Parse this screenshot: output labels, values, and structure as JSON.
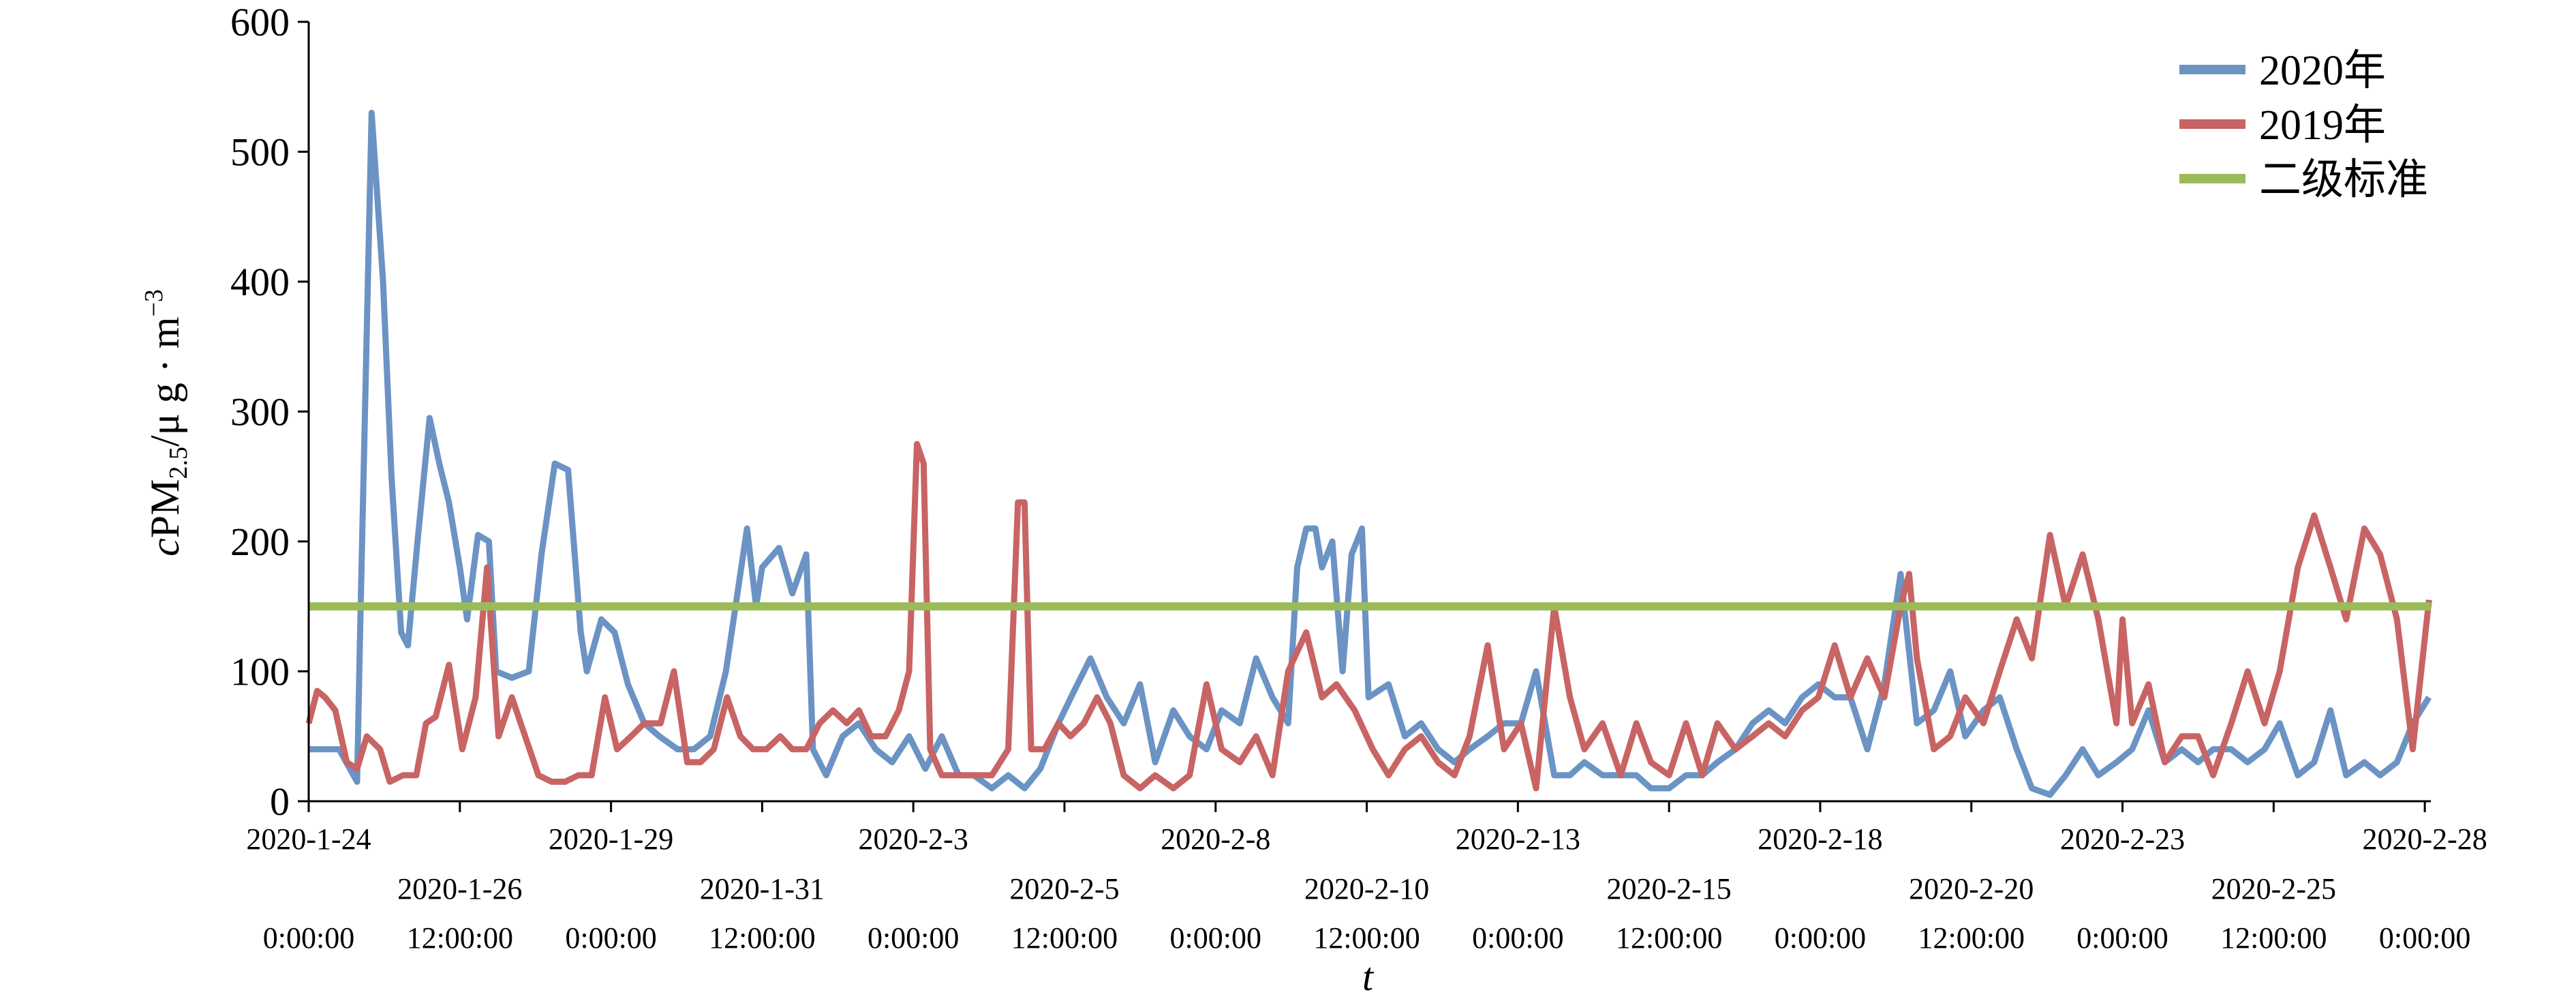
{
  "chart_data": {
    "type": "line",
    "ylabel": [
      "c",
      "PM",
      "2.5",
      "/μ g · m",
      "−3"
    ],
    "xlabel": "t",
    "xlim": [
      0,
      35.1
    ],
    "ylim": [
      0,
      600
    ],
    "yticks": [
      0,
      100,
      200,
      300,
      400,
      500,
      600
    ],
    "xticks": [
      {
        "value": 0,
        "label": "2020-1-24"
      },
      {
        "value": 2.5,
        "label": "2020-1-26"
      },
      {
        "value": 5,
        "label": "2020-1-29"
      },
      {
        "value": 7.5,
        "label": "2020-1-31"
      },
      {
        "value": 10,
        "label": "2020-2-3"
      },
      {
        "value": 12.5,
        "label": "2020-2-5"
      },
      {
        "value": 15,
        "label": "2020-2-8"
      },
      {
        "value": 17.5,
        "label": "2020-2-10"
      },
      {
        "value": 20,
        "label": "2020-2-13"
      },
      {
        "value": 22.5,
        "label": "2020-2-15"
      },
      {
        "value": 25,
        "label": "2020-2-18"
      },
      {
        "value": 27.5,
        "label": "2020-2-20"
      },
      {
        "value": 30,
        "label": "2020-2-23"
      },
      {
        "value": 32.5,
        "label": "2020-2-25"
      },
      {
        "value": 35,
        "label": "2020-2-28"
      }
    ],
    "xtick_times": [
      "0:00:00",
      "12:00:00",
      "0:00:00",
      "12:00:00",
      "0:00:00",
      "12:00:00",
      "0:00:00",
      "12:00:00",
      "0:00:00",
      "12:00:00",
      "0:00:00",
      "12:00:00",
      "0:00:00",
      "12:00:00",
      "0:00:00"
    ],
    "legend": "upper right",
    "series": [
      {
        "name": "2020年",
        "color": "#6b93c4",
        "x": [
          0,
          0.5,
          0.8,
          0.85,
          1.04,
          1.23,
          1.37,
          1.53,
          1.64,
          1.8,
          2.0,
          2.16,
          2.32,
          2.5,
          2.62,
          2.8,
          2.98,
          3.1,
          3.36,
          3.64,
          3.85,
          4.07,
          4.29,
          4.5,
          4.6,
          4.84,
          5.06,
          5.28,
          5.55,
          5.8,
          6.1,
          6.37,
          6.64,
          6.9,
          7.25,
          7.4,
          7.5,
          7.78,
          8.0,
          8.23,
          8.34,
          8.56,
          8.83,
          9.1,
          9.38,
          9.65,
          9.93,
          10.2,
          10.47,
          10.75,
          11.0,
          11.3,
          11.57,
          11.84,
          12.1,
          12.4,
          12.66,
          12.93,
          13.2,
          13.48,
          13.75,
          14.0,
          14.3,
          14.57,
          14.85,
          15.1,
          15.4,
          15.67,
          15.94,
          16.2,
          16.35,
          16.5,
          16.65,
          16.76,
          16.93,
          17.1,
          17.25,
          17.42,
          17.53,
          17.86,
          18.13,
          18.4,
          18.68,
          18.95,
          19.2,
          19.5,
          19.77,
          20.05,
          20.3,
          20.6,
          20.86,
          21.1,
          21.4,
          21.7,
          21.96,
          22.2,
          22.5,
          22.78,
          23.05,
          23.3,
          23.6,
          23.88,
          24.15,
          24.42,
          24.7,
          24.97,
          25.24,
          25.5,
          25.78,
          26.06,
          26.33,
          26.6,
          26.88,
          27.15,
          27.4,
          27.7,
          27.97,
          28.25,
          28.5,
          28.8,
          29.06,
          29.34,
          29.6,
          29.9,
          30.16,
          30.43,
          30.7,
          30.98,
          31.25,
          31.5,
          31.8,
          32.07,
          32.35,
          32.6,
          32.9,
          33.17,
          33.44,
          33.7,
          34.0,
          34.26,
          34.54,
          34.8,
          35.07
        ],
        "values": [
          40,
          40,
          15,
          130,
          530,
          400,
          250,
          130,
          120,
          200,
          295,
          260,
          230,
          180,
          140,
          205,
          200,
          100,
          95,
          100,
          190,
          260,
          255,
          130,
          100,
          140,
          130,
          90,
          60,
          50,
          40,
          40,
          50,
          100,
          210,
          150,
          180,
          195,
          160,
          190,
          40,
          20,
          50,
          60,
          40,
          30,
          50,
          25,
          50,
          20,
          20,
          10,
          20,
          10,
          25,
          60,
          85,
          110,
          80,
          60,
          90,
          30,
          70,
          50,
          40,
          70,
          60,
          110,
          80,
          60,
          180,
          210,
          210,
          180,
          200,
          100,
          190,
          210,
          80,
          90,
          50,
          60,
          40,
          30,
          40,
          50,
          60,
          60,
          100,
          20,
          20,
          30,
          20,
          20,
          20,
          10,
          10,
          20,
          20,
          30,
          40,
          60,
          70,
          60,
          80,
          90,
          80,
          80,
          40,
          90,
          175,
          60,
          70,
          100,
          50,
          70,
          80,
          40,
          10,
          5,
          20,
          40,
          20,
          30,
          40,
          70,
          30,
          40,
          30,
          40,
          40,
          30,
          40,
          60,
          20,
          30,
          70,
          20,
          30,
          20,
          30,
          60,
          80
        ]
      },
      {
        "name": "2019年",
        "color": "#c86464",
        "x": [
          0,
          0.14,
          0.27,
          0.44,
          0.63,
          0.8,
          0.96,
          1.18,
          1.34,
          1.56,
          1.78,
          1.94,
          2.1,
          2.32,
          2.54,
          2.76,
          2.95,
          3.14,
          3.36,
          3.58,
          3.8,
          4.02,
          4.24,
          4.46,
          4.68,
          4.9,
          5.1,
          5.33,
          5.55,
          5.82,
          6.04,
          6.26,
          6.48,
          6.7,
          6.92,
          7.14,
          7.35,
          7.57,
          7.8,
          8.0,
          8.23,
          8.45,
          8.67,
          8.9,
          9.1,
          9.3,
          9.54,
          9.76,
          9.93,
          10.06,
          10.17,
          10.28,
          10.47,
          10.75,
          11.0,
          11.3,
          11.57,
          11.73,
          11.84,
          11.95,
          12.17,
          12.4,
          12.6,
          12.82,
          13.04,
          13.26,
          13.48,
          13.75,
          14.0,
          14.3,
          14.57,
          14.85,
          15.1,
          15.4,
          15.67,
          15.94,
          16.2,
          16.5,
          16.76,
          17.0,
          17.3,
          17.6,
          17.86,
          18.13,
          18.4,
          18.68,
          18.95,
          19.2,
          19.5,
          19.77,
          20.05,
          20.3,
          20.6,
          20.86,
          21.1,
          21.4,
          21.7,
          21.96,
          22.2,
          22.5,
          22.78,
          23.05,
          23.3,
          23.6,
          23.88,
          24.15,
          24.42,
          24.7,
          24.97,
          25.24,
          25.5,
          25.78,
          26.06,
          26.33,
          26.47,
          26.6,
          26.88,
          27.15,
          27.4,
          27.7,
          27.97,
          28.25,
          28.5,
          28.8,
          29.06,
          29.34,
          29.6,
          29.9,
          30.0,
          30.16,
          30.43,
          30.7,
          30.98,
          31.25,
          31.5,
          31.8,
          32.07,
          32.35,
          32.6,
          32.9,
          33.17,
          33.44,
          33.7,
          34.0,
          34.26,
          34.54,
          34.8,
          35.07
        ],
        "values": [
          60,
          85,
          80,
          70,
          30,
          25,
          50,
          40,
          15,
          20,
          20,
          60,
          65,
          105,
          40,
          80,
          180,
          50,
          80,
          50,
          20,
          15,
          15,
          20,
          20,
          80,
          40,
          50,
          60,
          60,
          100,
          30,
          30,
          40,
          80,
          50,
          40,
          40,
          50,
          40,
          40,
          60,
          70,
          60,
          70,
          50,
          50,
          70,
          100,
          275,
          260,
          40,
          20,
          20,
          20,
          20,
          40,
          230,
          230,
          40,
          40,
          60,
          50,
          60,
          80,
          60,
          20,
          10,
          20,
          10,
          20,
          90,
          40,
          30,
          50,
          20,
          100,
          130,
          80,
          90,
          70,
          40,
          20,
          40,
          50,
          30,
          20,
          50,
          120,
          40,
          60,
          10,
          150,
          80,
          40,
          60,
          20,
          60,
          30,
          20,
          60,
          20,
          60,
          40,
          50,
          60,
          50,
          70,
          80,
          120,
          80,
          110,
          80,
          150,
          175,
          110,
          40,
          50,
          80,
          60,
          100,
          140,
          110,
          205,
          150,
          190,
          140,
          60,
          140,
          60,
          90,
          30,
          50,
          50,
          20,
          60,
          100,
          60,
          100,
          180,
          220,
          180,
          140,
          210,
          190,
          140,
          40,
          155
        ]
      },
      {
        "name": "二级标准",
        "color": "#9bbb59",
        "x": [
          0,
          35.1
        ],
        "values": [
          150,
          150
        ]
      }
    ]
  }
}
